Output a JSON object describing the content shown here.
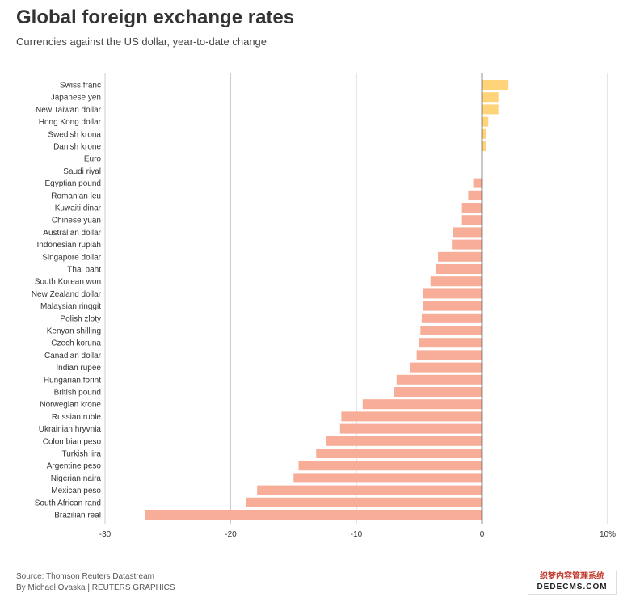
{
  "header": {
    "title": "Global foreign exchange rates",
    "subtitle": "Currencies against the US dollar, year-to-date change"
  },
  "footer": {
    "source": "Source: Thomson Reuters Datastream",
    "byline": "By Michael Ovaska | REUTERS GRAPHICS"
  },
  "watermark": {
    "line1": "织梦内容管理系统",
    "line2": "DEDECMS.COM"
  },
  "chart_data": {
    "type": "bar",
    "orientation": "horizontal",
    "title": "Global foreign exchange rates",
    "subtitle": "Currencies against the US dollar, year-to-date change",
    "xlim": [
      -30,
      10
    ],
    "xticks": [
      "-30",
      "-20",
      "-10",
      "0",
      "10%"
    ],
    "xtick_values": [
      -30,
      -20,
      -10,
      0,
      10
    ],
    "grid": true,
    "colors": {
      "positive": "#ffd37a",
      "negative": "#f8ad98",
      "zero_line": "#222222",
      "grid": "#cccccc"
    },
    "categories": [
      "Swiss franc",
      "Japanese yen",
      "New Taiwan dollar",
      "Hong Kong dollar",
      "Swedish krona",
      "Danish krone",
      "Euro",
      "Saudi riyal",
      "Egyptian pound",
      "Romanian leu",
      "Kuwaiti dinar",
      "Chinese yuan",
      "Australian dollar",
      "Indonesian rupiah",
      "Singapore dollar",
      "Thai baht",
      "South Korean won",
      "New Zealand dollar",
      "Malaysian ringgit",
      "Polish zloty",
      "Kenyan shilling",
      "Czech koruna",
      "Canadian dollar",
      "Indian rupee",
      "Hungarian forint",
      "British pound",
      "Norwegian krone",
      "Russian ruble",
      "Ukrainian hryvnia",
      "Colombian peso",
      "Turkish lira",
      "Argentine peso",
      "Nigerian naira",
      "Mexican peso",
      "South African rand",
      "Brazilian real"
    ],
    "values": [
      2.1,
      1.3,
      1.3,
      0.5,
      0.3,
      0.3,
      0.0,
      0.0,
      -0.7,
      -1.1,
      -1.6,
      -1.6,
      -2.3,
      -2.4,
      -3.5,
      -3.7,
      -4.1,
      -4.7,
      -4.7,
      -4.8,
      -4.9,
      -5.0,
      -5.2,
      -5.7,
      -6.8,
      -7.0,
      -9.5,
      -11.2,
      -11.3,
      -12.4,
      -13.2,
      -14.6,
      -15.0,
      -17.9,
      -18.8,
      -26.8
    ]
  }
}
